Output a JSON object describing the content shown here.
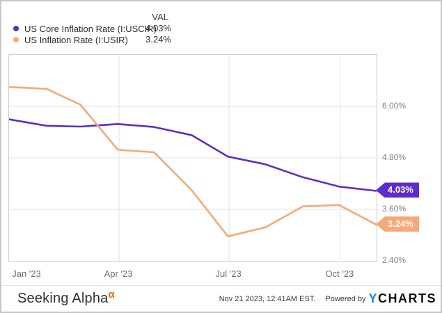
{
  "legend": {
    "val_header": "VAL",
    "rows": [
      {
        "label": "US Core Inflation Rate (I:USCIR)",
        "val": "4.03%"
      },
      {
        "label": "US Inflation Rate (I:USIR)",
        "val": "3.24%"
      }
    ]
  },
  "chart_data": {
    "type": "line",
    "title": "",
    "x_dates": [
      "2022-12-31",
      "2023-01-31",
      "2023-02-28",
      "2023-03-31",
      "2023-04-30",
      "2023-05-31",
      "2023-06-30",
      "2023-07-31",
      "2023-08-31",
      "2023-09-30",
      "2023-10-31"
    ],
    "series": [
      {
        "name": "US Core Inflation Rate (I:USCIR)",
        "ticker": "I:USCIR",
        "color": "#5C2EC9",
        "values": [
          5.7,
          5.55,
          5.53,
          5.59,
          5.52,
          5.33,
          4.83,
          4.65,
          4.35,
          4.13,
          4.03
        ],
        "last_value_label": "4.03%"
      },
      {
        "name": "US Inflation Rate (I:USIR)",
        "ticker": "I:USIR",
        "color": "#F8A876",
        "values": [
          6.45,
          6.41,
          6.04,
          4.99,
          4.93,
          4.05,
          2.97,
          3.18,
          3.67,
          3.7,
          3.24
        ],
        "last_value_label": "3.24%"
      }
    ],
    "ylim": [
      2.4,
      7.2
    ],
    "yticks": [
      {
        "value": 6.0,
        "label": "6.00%"
      },
      {
        "value": 4.8,
        "label": "4.80%"
      },
      {
        "value": 3.6,
        "label": "3.60%"
      },
      {
        "value": 2.4,
        "label": "2.40%"
      }
    ],
    "xticks": [
      {
        "date": "2023-01-01",
        "label": "Jan '23"
      },
      {
        "date": "2023-04-01",
        "label": "Apr '23"
      },
      {
        "date": "2023-07-01",
        "label": "Jul '23"
      },
      {
        "date": "2023-10-01",
        "label": "Oct '23"
      }
    ],
    "grid": true,
    "legend_position": "top-left",
    "gridline_color": "#e2e2e2",
    "plot_border_color": "#cccccc"
  },
  "footer": {
    "brand": "Seeking Alpha",
    "brand_sup": "α",
    "brand_sup_color": "#F26A0A",
    "timestamp": "Nov 21 2023, 12:41AM EST.",
    "powered_by": "Powered by",
    "logo_y": "Y",
    "logo_rest": "CHARTS",
    "logo_y_color": "#1F83E8"
  }
}
